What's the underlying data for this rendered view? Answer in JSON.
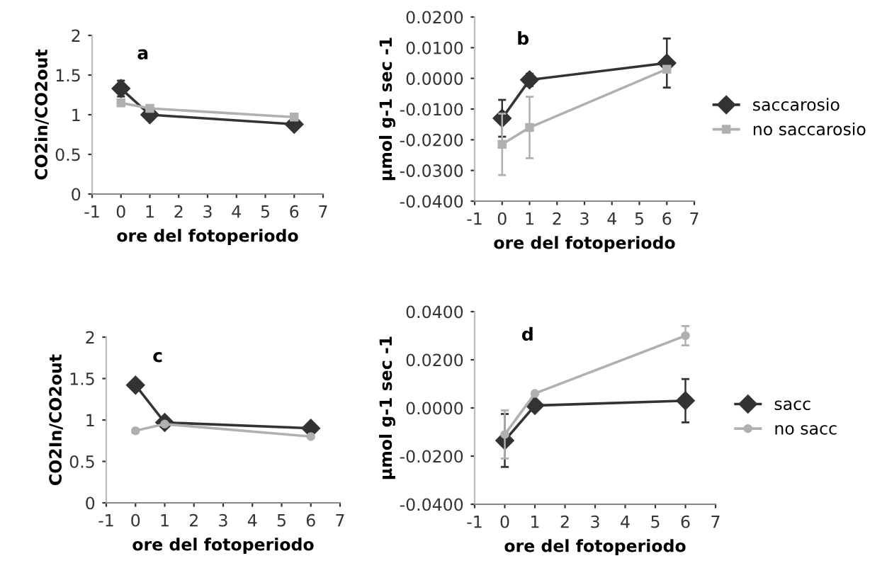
{
  "chart_data": [
    {
      "type": "line",
      "ylabel": "CO2in/CO2out",
      "xlabel": "ore del fotoperiodo",
      "annotations": [
        "a"
      ],
      "xlim": [
        -1,
        7
      ],
      "xticks": [
        -1,
        0,
        1,
        2,
        3,
        4,
        5,
        6,
        7
      ],
      "ylim": [
        0,
        2
      ],
      "yticks": [
        0,
        0.5,
        1,
        1.5,
        2
      ],
      "grid": false,
      "legend": false,
      "series": [
        {
          "color": "#333333",
          "marker": "diamond",
          "x": [
            0,
            1,
            6
          ],
          "values": [
            1.33,
            1.0,
            0.88
          ],
          "errors": [
            0.1,
            null,
            null
          ]
        },
        {
          "color": "#b0b0b0",
          "marker": "square",
          "x": [
            0,
            1,
            6
          ],
          "values": [
            1.15,
            1.08,
            0.97
          ]
        }
      ]
    },
    {
      "type": "line",
      "ylabel": "µmol g-1 sec -1",
      "xlabel": "ore del fotoperiodo",
      "annotations": [
        "b"
      ],
      "xlim": [
        -1,
        7
      ],
      "xticks": [
        -1,
        0,
        1,
        2,
        3,
        4,
        5,
        6,
        7
      ],
      "ylim": [
        -0.04,
        0.02
      ],
      "yticks": [
        {
          "value": -0.04,
          "label": "-0.0400"
        },
        {
          "value": -0.03,
          "label": "-0.0300"
        },
        {
          "value": -0.02,
          "label": "-0.0200"
        },
        {
          "value": -0.01,
          "label": "-0.0100"
        },
        {
          "value": 0,
          "label": "0.0000"
        },
        {
          "value": 0.01,
          "label": "0.0100"
        },
        {
          "value": 0.02,
          "label": "0.0200"
        }
      ],
      "grid": false,
      "legend": "right",
      "series": [
        {
          "name": "saccarosio",
          "color": "#333333",
          "marker": "diamond",
          "x": [
            0,
            1,
            6
          ],
          "values": [
            -0.013,
            -0.0005,
            0.005
          ],
          "errors": [
            0.006,
            0.002,
            0.008
          ]
        },
        {
          "name": "no saccarosio",
          "color": "#b0b0b0",
          "marker": "square",
          "x": [
            0,
            1,
            6
          ],
          "values": [
            -0.0215,
            -0.016,
            0.003
          ],
          "errors": [
            0.01,
            0.01,
            null
          ]
        }
      ]
    },
    {
      "type": "line",
      "ylabel": "CO2In/CO2out",
      "xlabel": "ore del fotoperiodo",
      "annotations": [
        "c"
      ],
      "xlim": [
        -1,
        7
      ],
      "xticks": [
        -1,
        0,
        1,
        2,
        3,
        4,
        5,
        6,
        7
      ],
      "ylim": [
        0,
        2
      ],
      "yticks": [
        0,
        0.5,
        1,
        1.5,
        2
      ],
      "grid": false,
      "legend": false,
      "series": [
        {
          "color": "#333333",
          "marker": "diamond",
          "x": [
            0,
            1,
            6
          ],
          "values": [
            1.42,
            0.97,
            0.9
          ],
          "errors": [
            null,
            null,
            0.05
          ]
        },
        {
          "color": "#b0b0b0",
          "marker": "circle",
          "x": [
            0,
            1,
            6
          ],
          "values": [
            0.87,
            0.95,
            0.8
          ]
        }
      ]
    },
    {
      "type": "line",
      "ylabel": "µmol g-1 sec -1",
      "xlabel": "ore del fotoperiodo",
      "annotations": [
        "d"
      ],
      "xlim": [
        -1,
        7
      ],
      "xticks": [
        -1,
        0,
        1,
        2,
        3,
        4,
        5,
        6,
        7
      ],
      "ylim": [
        -0.04,
        0.04
      ],
      "yticks": [
        {
          "value": -0.04,
          "label": "-0.0400"
        },
        {
          "value": -0.02,
          "label": "-0.0200"
        },
        {
          "value": 0,
          "label": "0.0000"
        },
        {
          "value": 0.02,
          "label": "0.0200"
        },
        {
          "value": 0.04,
          "label": "0.0400"
        }
      ],
      "grid": false,
      "legend": "right",
      "series": [
        {
          "name": "sacc",
          "color": "#333333",
          "marker": "diamond",
          "x": [
            0,
            1,
            6
          ],
          "values": [
            -0.0135,
            0.001,
            0.003
          ],
          "errors": [
            0.011,
            null,
            0.009
          ]
        },
        {
          "name": "no sacc",
          "color": "#b0b0b0",
          "marker": "circle",
          "x": [
            0,
            1,
            6
          ],
          "values": [
            -0.011,
            0.006,
            0.03
          ],
          "errors": [
            0.01,
            null,
            0.004
          ]
        }
      ]
    }
  ]
}
